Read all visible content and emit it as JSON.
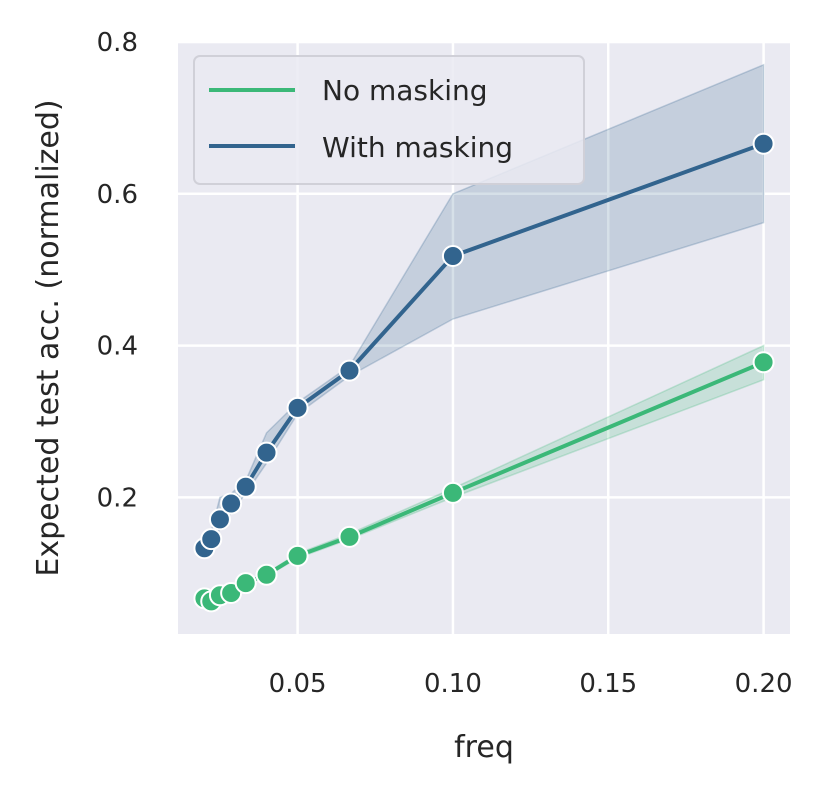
{
  "chart_data": {
    "type": "line",
    "xlabel": "freq",
    "ylabel": "Expected test acc. (normalized)",
    "xlim": [
      0.0115,
      0.2085
    ],
    "ylim": [
      0.02,
      0.8
    ],
    "x_ticks": [
      0.05,
      0.1,
      0.15,
      0.2
    ],
    "x_tick_labels": [
      "0.05",
      "0.10",
      "0.15",
      "0.20"
    ],
    "y_ticks": [
      0.2,
      0.4,
      0.6,
      0.8
    ],
    "y_tick_labels": [
      "0.2",
      "0.4",
      "0.6",
      "0.8"
    ],
    "grid": true,
    "legend_placement": "upper-left",
    "background_color": "#eaeaf2",
    "series": [
      {
        "name": "No masking",
        "color": "#3bb878",
        "x": [
          0.02,
          0.0222,
          0.025,
          0.0286,
          0.0333,
          0.04,
          0.05,
          0.0667,
          0.1,
          0.2
        ],
        "y": [
          0.067,
          0.063,
          0.071,
          0.074,
          0.087,
          0.098,
          0.123,
          0.148,
          0.206,
          0.378
        ],
        "lower": [
          0.065,
          0.061,
          0.069,
          0.072,
          0.085,
          0.096,
          0.12,
          0.145,
          0.2,
          0.355
        ],
        "upper": [
          0.069,
          0.065,
          0.073,
          0.076,
          0.089,
          0.1,
          0.126,
          0.152,
          0.212,
          0.4
        ]
      },
      {
        "name": "With masking",
        "color": "#32648e",
        "x": [
          0.02,
          0.0222,
          0.025,
          0.0286,
          0.0333,
          0.04,
          0.05,
          0.0667,
          0.1,
          0.2
        ],
        "y": [
          0.133,
          0.145,
          0.171,
          0.192,
          0.214,
          0.259,
          0.318,
          0.367,
          0.518,
          0.666
        ],
        "lower": [
          0.128,
          0.138,
          0.158,
          0.18,
          0.205,
          0.245,
          0.31,
          0.36,
          0.435,
          0.562
        ],
        "upper": [
          0.14,
          0.155,
          0.2,
          0.205,
          0.222,
          0.285,
          0.325,
          0.373,
          0.6,
          0.77
        ]
      }
    ]
  }
}
